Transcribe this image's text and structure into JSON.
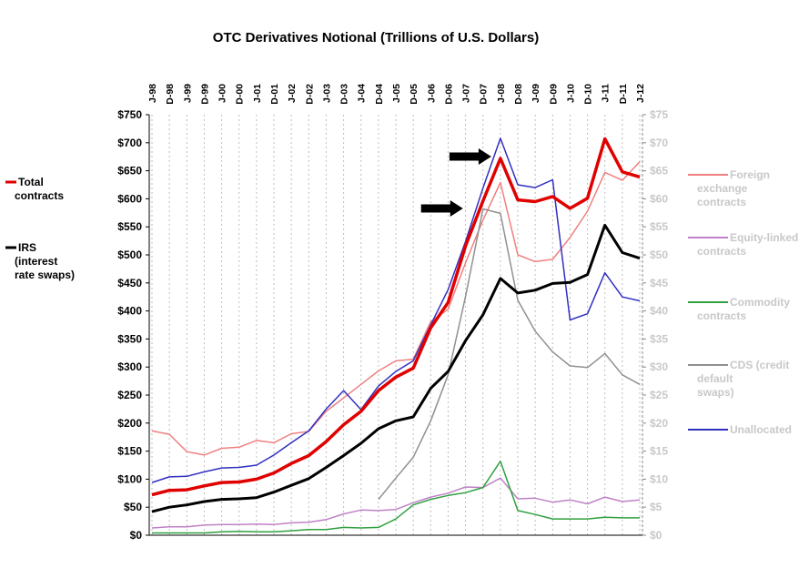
{
  "chart_data": {
    "type": "line",
    "title": "OTC Derivatives Notional (Trillions of U.S. Dollars)",
    "x": [
      "J-98",
      "D-98",
      "J-99",
      "D-99",
      "J-00",
      "D-00",
      "J-01",
      "D-01",
      "J-02",
      "D-02",
      "J-03",
      "D-03",
      "J-04",
      "D-04",
      "J-05",
      "D-05",
      "J-06",
      "D-06",
      "J-07",
      "D-07",
      "J-08",
      "D-08",
      "J-09",
      "D-09",
      "J-10",
      "D-10",
      "J-11",
      "D-11",
      "J-12"
    ],
    "y_left": {
      "min": 0,
      "max": 750,
      "step": 50,
      "prefix": "$"
    },
    "y_right": {
      "min": 0,
      "max": 75,
      "step": 5,
      "prefix": "$"
    },
    "grid": "vertical dashed",
    "series": [
      {
        "name": "Total contracts",
        "axis": "left",
        "color": "#e00000",
        "width": 3.5,
        "legend_color": "#e00000",
        "legend_text_color": "#000000",
        "values": [
          72,
          80,
          81,
          88,
          94,
          95,
          100,
          111,
          128,
          142,
          167,
          197,
          221,
          258,
          282,
          298,
          370,
          415,
          516,
          596,
          672,
          598,
          595,
          604,
          583,
          601,
          707,
          648,
          639
        ]
      },
      {
        "name": "IRS (interest rate swaps)",
        "axis": "left",
        "color": "#000000",
        "width": 3,
        "legend_color": "#000000",
        "legend_text_color": "#000000",
        "values": [
          42,
          50,
          54,
          60,
          64,
          65,
          67,
          77,
          89,
          101,
          121,
          142,
          164,
          190,
          204,
          211,
          262,
          292,
          347,
          393,
          458,
          432,
          437,
          449,
          451,
          465,
          553,
          504,
          494
        ]
      },
      {
        "name": "Foreign exchange contracts",
        "axis": "right",
        "color": "#f08080",
        "width": 1.5,
        "legend_color": "#f08080",
        "legend_text_color": "#c8c8c8",
        "values": [
          18.6,
          18.0,
          14.9,
          14.3,
          15.5,
          15.7,
          16.9,
          16.5,
          18.1,
          18.5,
          22.1,
          24.5,
          26.9,
          29.3,
          31.1,
          31.4,
          38.1,
          40.3,
          48.6,
          56.2,
          62.9,
          50.0,
          48.8,
          49.2,
          53.1,
          57.8,
          64.7,
          63.3,
          66.6
        ]
      },
      {
        "name": "Equity-linked contracts",
        "axis": "right",
        "color": "#c080c8",
        "width": 1.5,
        "legend_color": "#c080c8",
        "legend_text_color": "#c8c8c8",
        "values": [
          1.3,
          1.5,
          1.5,
          1.8,
          1.9,
          1.9,
          2.0,
          1.9,
          2.2,
          2.3,
          2.8,
          3.8,
          4.5,
          4.4,
          4.6,
          5.8,
          6.8,
          7.5,
          8.6,
          8.5,
          10.2,
          6.5,
          6.6,
          5.9,
          6.3,
          5.6,
          6.8,
          6.0,
          6.3
        ]
      },
      {
        "name": "Commodity contracts",
        "axis": "right",
        "color": "#30a040",
        "width": 1.5,
        "legend_color": "#30a040",
        "legend_text_color": "#c8c8c8",
        "values": [
          0.4,
          0.4,
          0.4,
          0.4,
          0.6,
          0.7,
          0.6,
          0.6,
          0.8,
          1.0,
          1.0,
          1.4,
          1.3,
          1.4,
          2.9,
          5.4,
          6.4,
          7.1,
          7.6,
          8.5,
          13.2,
          4.4,
          3.7,
          2.9,
          2.9,
          2.9,
          3.2,
          3.1,
          3.1
        ]
      },
      {
        "name": "CDS (credit default swaps)",
        "axis": "right",
        "color": "#909090",
        "width": 1.5,
        "legend_color": "#909090",
        "legend_text_color": "#c8c8c8",
        "values": [
          null,
          null,
          null,
          null,
          null,
          null,
          null,
          null,
          null,
          null,
          null,
          null,
          null,
          6.4,
          10.2,
          13.9,
          20.4,
          28.6,
          42.6,
          58.2,
          57.4,
          41.9,
          36.4,
          32.7,
          30.2,
          29.9,
          32.4,
          28.6,
          26.9
        ]
      },
      {
        "name": "Unallocated",
        "axis": "right",
        "color": "#3030c0",
        "width": 1.5,
        "legend_color": "#3030c0",
        "legend_text_color": "#c8c8c8",
        "values": [
          9.4,
          10.4,
          10.5,
          11.3,
          12.0,
          12.1,
          12.5,
          14.3,
          16.5,
          18.6,
          22.5,
          25.8,
          22.4,
          26.6,
          29.2,
          31.1,
          37.5,
          43.8,
          52.4,
          61.9,
          70.8,
          62.5,
          62.0,
          63.4,
          38.4,
          39.5,
          46.8,
          42.5,
          41.8
        ]
      }
    ],
    "legend": "left and right of plot",
    "annotations": [
      {
        "type": "arrow",
        "label": "arrow-upper",
        "target_index": 20
      },
      {
        "type": "arrow",
        "label": "arrow-lower",
        "target_index": 19
      }
    ]
  }
}
